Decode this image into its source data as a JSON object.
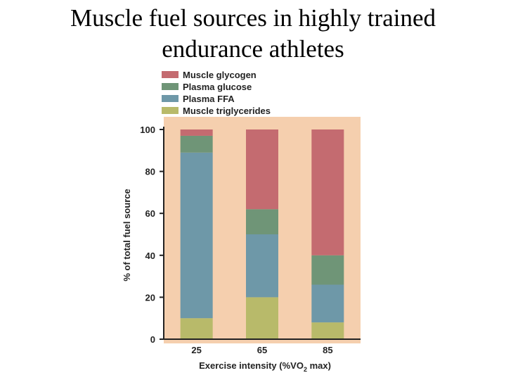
{
  "slide": {
    "title_line1": "Muscle fuel sources in highly trained",
    "title_line2": "endurance athletes"
  },
  "chart_data": {
    "type": "bar",
    "stacked": true,
    "categories": [
      "25",
      "65",
      "85"
    ],
    "series": [
      {
        "name": "Muscle triglycerides",
        "color": "#b8ba6a",
        "values": [
          10,
          20,
          8
        ]
      },
      {
        "name": "Plasma FFA",
        "color": "#6e98a8",
        "values": [
          79,
          30,
          18
        ]
      },
      {
        "name": "Plasma glucose",
        "color": "#6f9577",
        "values": [
          8,
          12,
          14
        ]
      },
      {
        "name": "Muscle glycogen",
        "color": "#c46b70",
        "values": [
          3,
          38,
          60
        ]
      }
    ],
    "legend_order": [
      "Muscle glycogen",
      "Plasma glucose",
      "Plasma FFA",
      "Muscle triglycerides"
    ],
    "xlabel_prefix": "Exercise intensity (%V",
    "xlabel_sub": "2",
    "xlabel_mid": "O",
    "xlabel_suffix": " max)",
    "ylabel": "% of total fuel source",
    "ylim": [
      0,
      100
    ],
    "yticks": [
      "0",
      "20",
      "40",
      "60",
      "80",
      "100"
    ],
    "legend_position": "top",
    "grid": false,
    "background_color": "#f5cfae"
  }
}
